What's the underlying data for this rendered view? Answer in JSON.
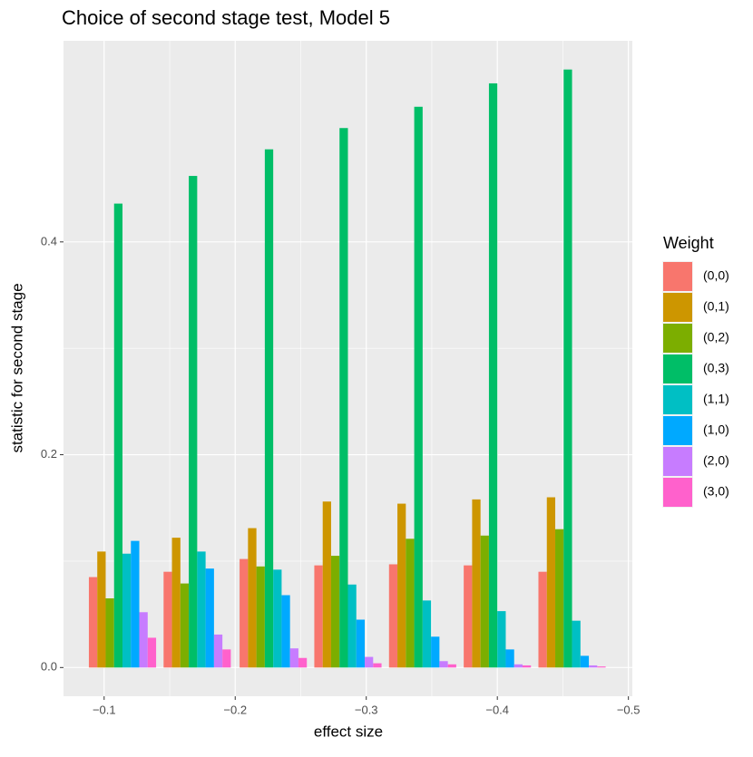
{
  "chart_data": {
    "type": "bar",
    "title": "Choice of second stage test, Model 5",
    "x_label": "effect size",
    "y_label": "statistic for second stage",
    "legend_title": "Weight",
    "legend_position": "right",
    "grid": true,
    "x": [
      -0.114,
      -0.171,
      -0.229,
      -0.286,
      -0.343,
      -0.4,
      -0.457
    ],
    "xlim": [
      -0.069,
      -0.503
    ],
    "xticks": [
      {
        "value": -0.1,
        "label": "−0.1"
      },
      {
        "value": -0.2,
        "label": "−0.2"
      },
      {
        "value": -0.3,
        "label": "−0.3"
      },
      {
        "value": -0.4,
        "label": "−0.4"
      },
      {
        "value": -0.5,
        "label": "−0.5"
      }
    ],
    "ylim": [
      -0.027,
      0.589
    ],
    "yticks": [
      {
        "value": 0,
        "label": "0.0"
      },
      0.2,
      0.4
    ],
    "series": [
      {
        "name": "(0,0)",
        "color": "#F8766D",
        "values": [
          0.085,
          0.09,
          0.102,
          0.096,
          0.097,
          0.096,
          0.09
        ]
      },
      {
        "name": "(0,1)",
        "color": "#CD9600",
        "values": [
          0.109,
          0.122,
          0.131,
          0.156,
          0.154,
          0.158,
          0.16
        ]
      },
      {
        "name": "(0,2)",
        "color": "#7CAE00",
        "values": [
          0.065,
          0.079,
          0.095,
          0.105,
          0.121,
          0.124,
          0.13
        ]
      },
      {
        "name": "(0,3)",
        "color": "#00BE67",
        "values": [
          0.436,
          0.462,
          0.487,
          0.507,
          0.527,
          0.549,
          0.562
        ]
      },
      {
        "name": "(1,1)",
        "color": "#00BFC4",
        "values": [
          0.107,
          0.109,
          0.092,
          0.078,
          0.063,
          0.053,
          0.044
        ]
      },
      {
        "name": "(1,0)",
        "color": "#00A9FF",
        "values": [
          0.119,
          0.093,
          0.068,
          0.045,
          0.029,
          0.017,
          0.011
        ]
      },
      {
        "name": "(2,0)",
        "color": "#C77CFF",
        "values": [
          0.052,
          0.031,
          0.018,
          0.01,
          0.006,
          0.003,
          0.002
        ]
      },
      {
        "name": "(3,0)",
        "color": "#FF61CC",
        "values": [
          0.028,
          0.017,
          0.009,
          0.004,
          0.003,
          0.002,
          0.001
        ]
      }
    ]
  }
}
